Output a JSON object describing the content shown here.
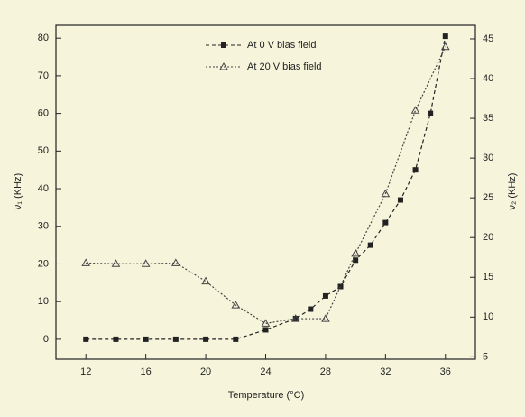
{
  "chart_data": {
    "type": "line",
    "xlabel": "Temperature (°C)",
    "ylabel": "ν₁ (KHz)",
    "y2label": "ν₂ (KHz)",
    "xlim": [
      10,
      38
    ],
    "xticks": [
      12,
      16,
      20,
      24,
      28,
      32,
      36
    ],
    "ylim": [
      -5.3,
      83.4
    ],
    "yticks": [
      0,
      10,
      20,
      30,
      40,
      50,
      60,
      70,
      80
    ],
    "y2lim": [
      4.7,
      46.7
    ],
    "y2ticks": [
      5,
      10,
      15,
      20,
      25,
      30,
      35,
      40,
      45
    ],
    "series": [
      {
        "name": "At 0 V bias field",
        "color": "#222222",
        "marker": "square",
        "dash": "4,3",
        "x": [
          12,
          14,
          16,
          18,
          20,
          22,
          24,
          26,
          27,
          28,
          29,
          30,
          31,
          32,
          33,
          34,
          35,
          36
        ],
        "values": [
          0,
          0,
          0,
          0,
          0,
          0,
          2.5,
          5.5,
          8,
          11.5,
          14,
          21,
          25,
          31,
          37,
          45,
          60,
          80.5
        ]
      },
      {
        "name": "At 20 V bias field",
        "color": "#444444",
        "marker": "triangle",
        "dash": "2,2",
        "axis": "y2",
        "x": [
          12,
          14,
          16,
          18,
          20,
          22,
          24,
          26,
          28,
          30,
          32,
          34,
          36
        ],
        "values": [
          16.8,
          16.7,
          16.7,
          16.8,
          14.5,
          11.5,
          9.2,
          9.8,
          9.8,
          18,
          25.5,
          36,
          44
        ]
      }
    ],
    "legend": "top"
  }
}
